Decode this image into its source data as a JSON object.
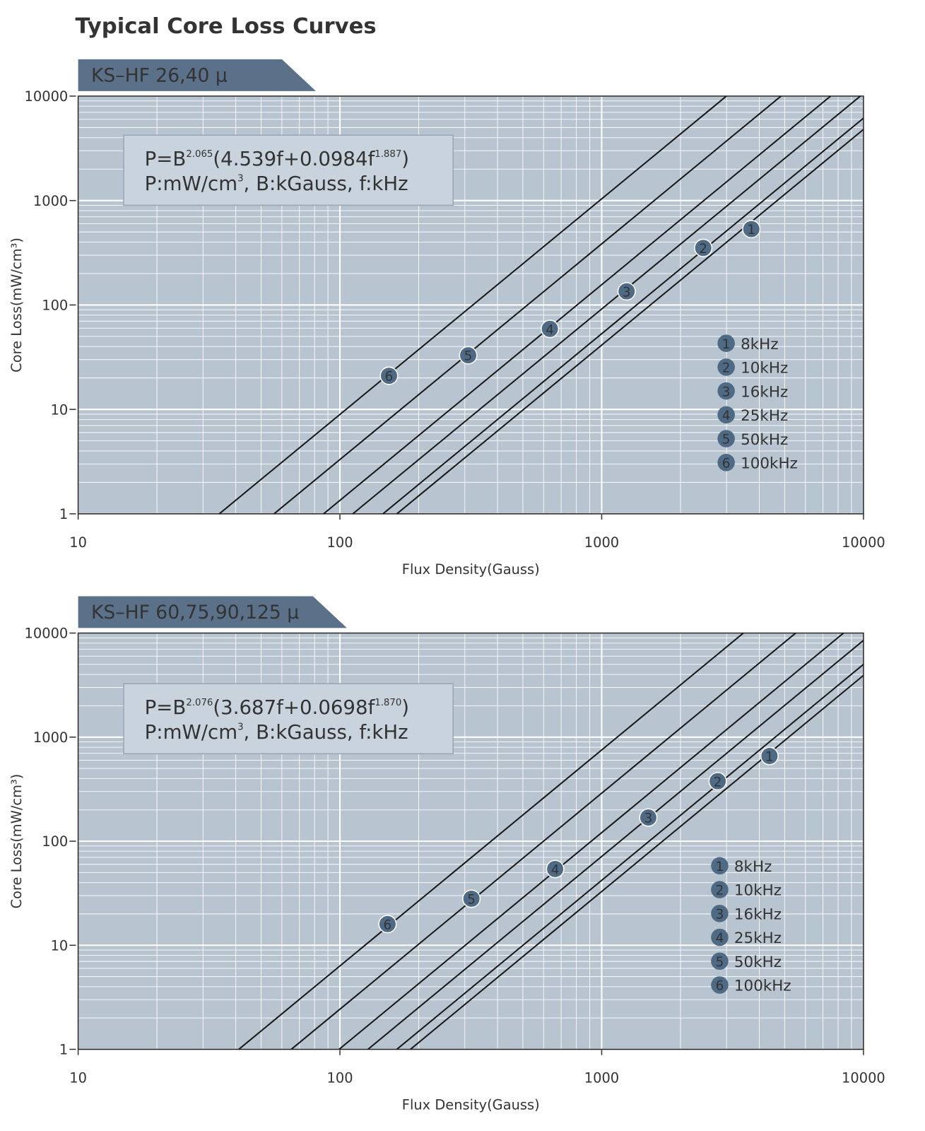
{
  "title": "Typical Core Loss Curves",
  "chart_data": [
    {
      "type": "line",
      "title": "KS–HF 26,40 μ",
      "x_label": "Flux Density(Gauss)",
      "y_label": "Core Loss(mW/cm³)",
      "log_x": true,
      "log_y": true,
      "grid": true,
      "xlim": [
        10,
        10000
      ],
      "ylim": [
        1,
        10000
      ],
      "xticks": [
        10,
        100,
        1000,
        10000
      ],
      "yticks": [
        1,
        10,
        100,
        1000,
        10000
      ],
      "formula_line1": [
        "P=B",
        "2.065",
        "(4.539f+0.0984f",
        "1.887",
        ")"
      ],
      "formula_line2": [
        "P:mW/cm",
        "3",
        ", B:kGauss, f:kHz"
      ],
      "series": [
        {
          "name": "8kHz",
          "color": "#1a1a1a",
          "x": [
            165,
            10000
          ],
          "values": [
            1,
            4794
          ],
          "marker": {
            "label": "1",
            "x": 3730,
            "y": 533
          }
        },
        {
          "name": "10kHz",
          "color": "#1a1a1a",
          "x": [
            146,
            10000
          ],
          "values": [
            1,
            6151
          ],
          "marker": {
            "label": "2",
            "x": 2443,
            "y": 352
          }
        },
        {
          "name": "16kHz",
          "color": "#1a1a1a",
          "x": [
            112,
            9730
          ],
          "values": [
            1,
            10000
          ],
          "marker": {
            "label": "3",
            "x": 1245,
            "y": 135
          }
        },
        {
          "name": "25kHz",
          "color": "#1a1a1a",
          "x": [
            86.6,
            7490
          ],
          "values": [
            1,
            10000
          ],
          "marker": {
            "label": "4",
            "x": 634,
            "y": 59
          }
        },
        {
          "name": "50kHz",
          "color": "#1a1a1a",
          "x": [
            56,
            4842
          ],
          "values": [
            1,
            10000
          ],
          "marker": {
            "label": "5",
            "x": 309,
            "y": 33
          }
        },
        {
          "name": "100kHz",
          "color": "#1a1a1a",
          "x": [
            34.6,
            2995
          ],
          "values": [
            1,
            10000
          ],
          "marker": {
            "label": "6",
            "x": 154,
            "y": 21
          }
        }
      ]
    },
    {
      "type": "line",
      "title": "KS–HF 60,75,90,125 μ",
      "x_label": "Flux Density(Gauss)",
      "y_label": "Core Loss(mW/cm³)",
      "log_x": true,
      "log_y": true,
      "grid": true,
      "xlim": [
        10,
        10000
      ],
      "ylim": [
        1,
        10000
      ],
      "xticks": [
        10,
        100,
        1000,
        10000
      ],
      "yticks": [
        1,
        10,
        100,
        1000,
        10000
      ],
      "formula_line1": [
        "P=B",
        "2.076",
        "(3.687f+0.0698f",
        "1.870",
        ")"
      ],
      "formula_line2": [
        "P:mW/cm",
        "3",
        ", B:kGauss, f:kHz"
      ],
      "series": [
        {
          "name": "8kHz",
          "color": "#1a1a1a",
          "x": [
            186,
            10000
          ],
          "values": [
            1,
            3918
          ],
          "marker": {
            "label": "1",
            "x": 4375,
            "y": 659
          }
        },
        {
          "name": "10kHz",
          "color": "#1a1a1a",
          "x": [
            165,
            10000
          ],
          "values": [
            1,
            5007
          ],
          "marker": {
            "label": "2",
            "x": 2774,
            "y": 377
          }
        },
        {
          "name": "16kHz",
          "color": "#1a1a1a",
          "x": [
            128,
            10000
          ],
          "values": [
            1,
            8511
          ],
          "marker": {
            "label": "3",
            "x": 1507,
            "y": 169
          }
        },
        {
          "name": "25kHz",
          "color": "#1a1a1a",
          "x": [
            99.3,
            8390
          ],
          "values": [
            1,
            10000
          ],
          "marker": {
            "label": "4",
            "x": 664,
            "y": 54
          }
        },
        {
          "name": "50kHz",
          "color": "#1a1a1a",
          "x": [
            65.2,
            5510
          ],
          "values": [
            1,
            10000
          ],
          "marker": {
            "label": "5",
            "x": 318,
            "y": 28
          }
        },
        {
          "name": "100kHz",
          "color": "#1a1a1a",
          "x": [
            41.1,
            3477
          ],
          "values": [
            1,
            10000
          ],
          "marker": {
            "label": "6",
            "x": 152,
            "y": 16
          }
        }
      ]
    }
  ]
}
